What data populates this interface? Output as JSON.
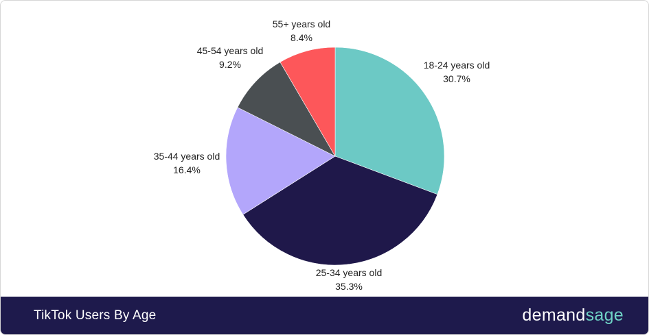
{
  "footer": {
    "title": "TikTok Users By Age",
    "brand_part1": "demand",
    "brand_part2": "sage"
  },
  "colors": {
    "footer_bg": "#1e1a4c",
    "brand_accent": "#6fd3c6"
  },
  "chart_data": {
    "type": "pie",
    "title": "TikTok Users By Age",
    "slices": [
      {
        "label": "18-24 years old",
        "value": 30.7,
        "display": "30.7%",
        "color": "#6cc9c5"
      },
      {
        "label": "25-34 years old",
        "value": 35.3,
        "display": "35.3%",
        "color": "#1f184a"
      },
      {
        "label": "35-44 years old",
        "value": 16.4,
        "display": "16.4%",
        "color": "#b3a6fb"
      },
      {
        "label": "45-54 years old",
        "value": 9.2,
        "display": "9.2%",
        "color": "#4a4f52"
      },
      {
        "label": "55+ years old",
        "value": 8.4,
        "display": "8.4%",
        "color": "#fd575a"
      }
    ],
    "start": "12 o'clock",
    "direction": "clockwise"
  }
}
